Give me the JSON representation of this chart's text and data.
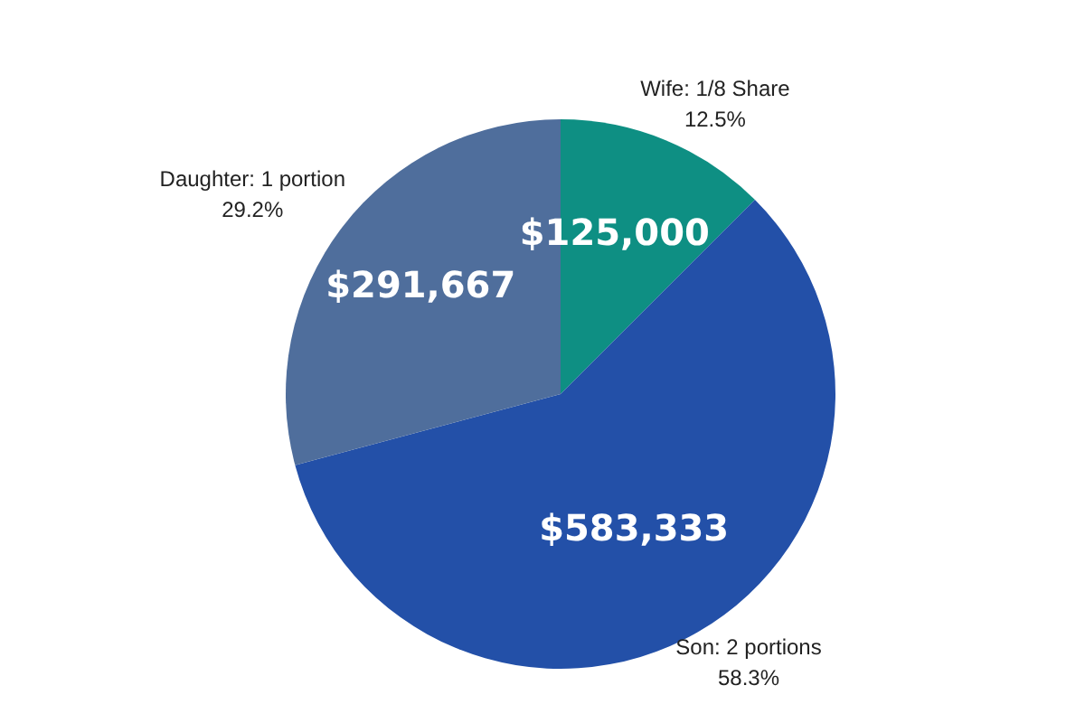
{
  "chart_data": {
    "type": "pie",
    "categories": [
      "Wife: 1/8 Share",
      "Son: 2 portions",
      "Daughter: 1 portion"
    ],
    "values": [
      125000,
      583333,
      291667
    ],
    "colors": [
      "#0e8f83",
      "#2350a8",
      "#4f6e9c"
    ],
    "value_labels": [
      "$125,000",
      "$583,333",
      "$291,667"
    ],
    "annotations": [
      "12.5%",
      "58.3%",
      "29.2%"
    ],
    "legend": false
  }
}
